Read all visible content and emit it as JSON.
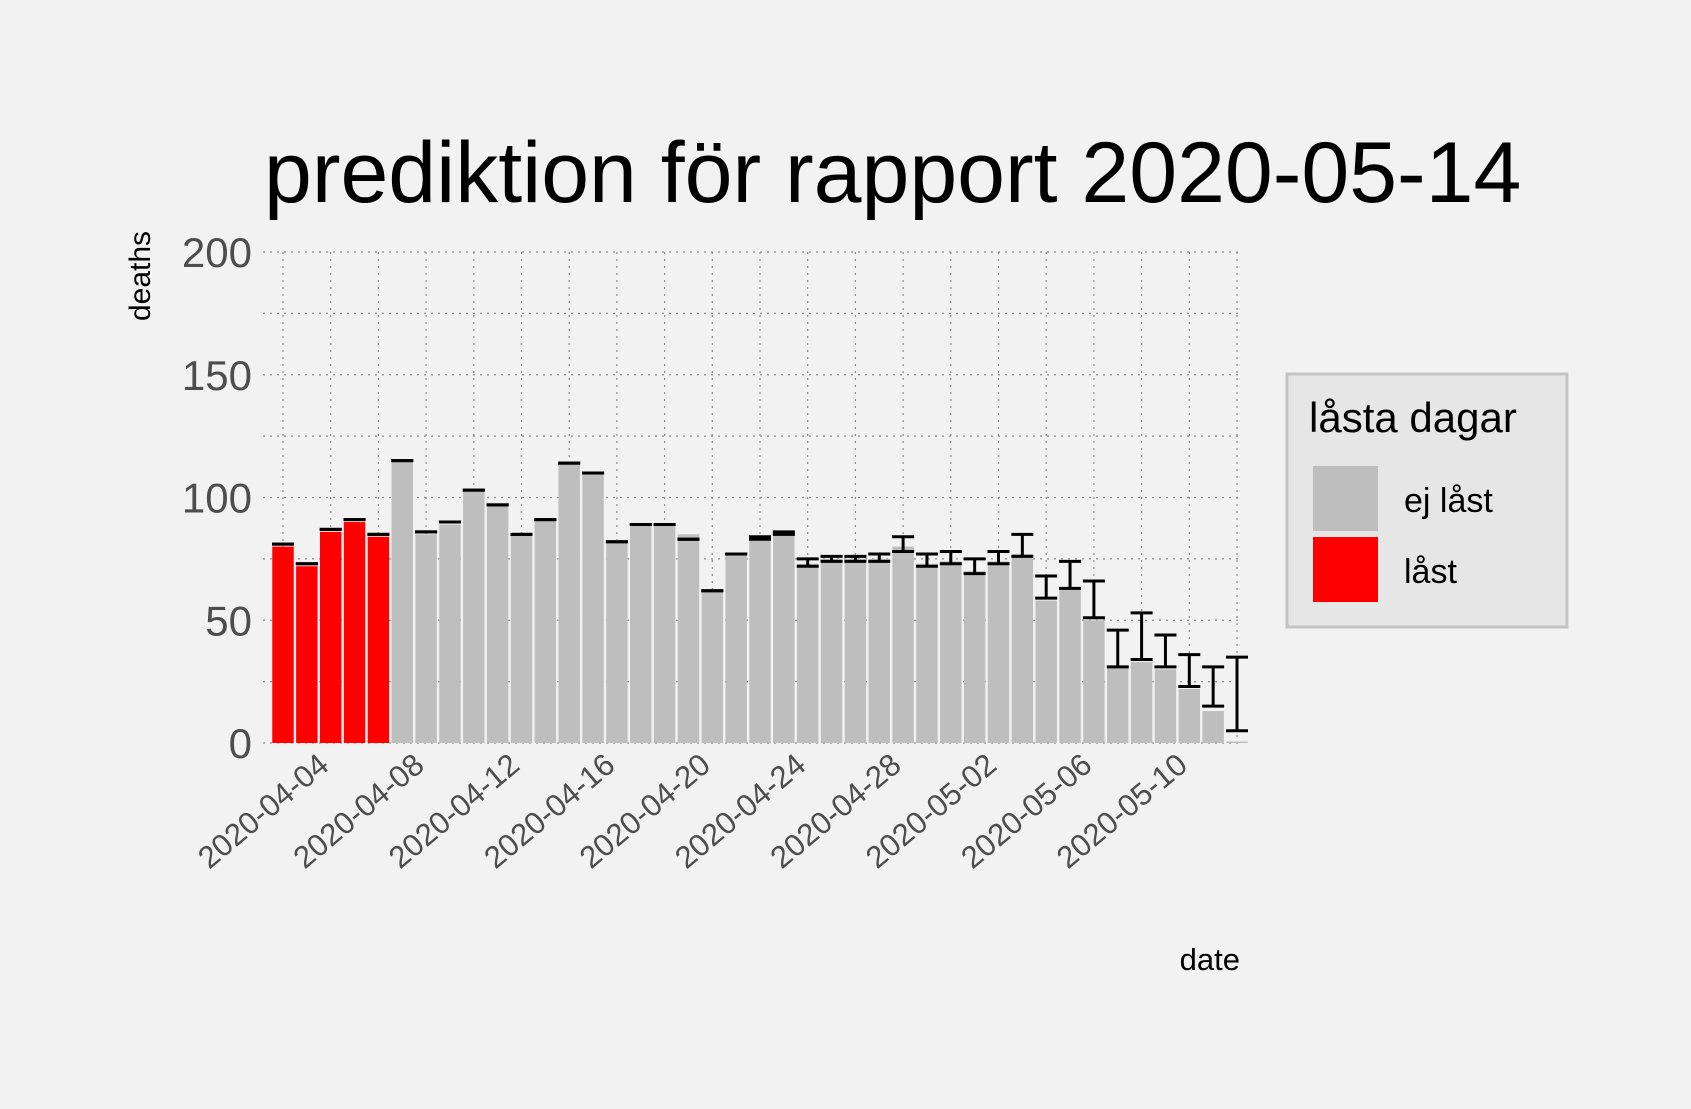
{
  "chart_data": {
    "type": "bar",
    "title": "prediktion för rapport 2020-05-14",
    "xlabel": "date",
    "ylabel": "deaths",
    "ylim": [
      0,
      200
    ],
    "yticks": [
      0,
      50,
      100,
      150,
      200
    ],
    "grid": true,
    "legend": {
      "title": "låsta dagar",
      "placement": "right",
      "entries": [
        {
          "label": "ej låst",
          "color": "#bebebe"
        },
        {
          "label": "låst",
          "color": "#ff0000"
        }
      ]
    },
    "colors": {
      "ej låst": "#bebebe",
      "låst": "#ff0000",
      "errorbar": "#000000"
    },
    "x_tick_labels": [
      "2020-04-04",
      "2020-04-08",
      "2020-04-12",
      "2020-04-16",
      "2020-04-20",
      "2020-04-24",
      "2020-04-28",
      "2020-05-02",
      "2020-05-06",
      "2020-05-10"
    ],
    "x_ticks_at": [
      "2020-04-04",
      "2020-04-08",
      "2020-04-12",
      "2020-04-16",
      "2020-04-20",
      "2020-04-24",
      "2020-04-28",
      "2020-05-02",
      "2020-05-06",
      "2020-05-10"
    ],
    "bars": [
      {
        "date": "2020-04-02",
        "value": 80,
        "low": 81,
        "high": 81,
        "group": "låst"
      },
      {
        "date": "2020-04-03",
        "value": 72,
        "low": 73,
        "high": 73,
        "group": "låst"
      },
      {
        "date": "2020-04-04",
        "value": 86,
        "low": 87,
        "high": 87,
        "group": "låst"
      },
      {
        "date": "2020-04-05",
        "value": 90,
        "low": 91,
        "high": 91,
        "group": "låst"
      },
      {
        "date": "2020-04-06",
        "value": 84,
        "low": 85,
        "high": 85,
        "group": "låst"
      },
      {
        "date": "2020-04-07",
        "value": 115,
        "low": 115,
        "high": 115,
        "group": "ej låst"
      },
      {
        "date": "2020-04-08",
        "value": 85,
        "low": 86,
        "high": 86,
        "group": "ej låst"
      },
      {
        "date": "2020-04-09",
        "value": 89,
        "low": 90,
        "high": 90,
        "group": "ej låst"
      },
      {
        "date": "2020-04-10",
        "value": 103,
        "low": 103,
        "high": 103,
        "group": "ej låst"
      },
      {
        "date": "2020-04-11",
        "value": 97,
        "low": 97,
        "high": 97,
        "group": "ej låst"
      },
      {
        "date": "2020-04-12",
        "value": 85,
        "low": 85,
        "high": 85,
        "group": "ej låst"
      },
      {
        "date": "2020-04-13",
        "value": 91,
        "low": 91,
        "high": 91,
        "group": "ej låst"
      },
      {
        "date": "2020-04-14",
        "value": 114,
        "low": 114,
        "high": 114,
        "group": "ej låst"
      },
      {
        "date": "2020-04-15",
        "value": 110,
        "low": 110,
        "high": 110,
        "group": "ej låst"
      },
      {
        "date": "2020-04-16",
        "value": 82,
        "low": 82,
        "high": 82,
        "group": "ej låst"
      },
      {
        "date": "2020-04-17",
        "value": 89,
        "low": 89,
        "high": 89,
        "group": "ej låst"
      },
      {
        "date": "2020-04-18",
        "value": 89,
        "low": 89,
        "high": 89,
        "group": "ej låst"
      },
      {
        "date": "2020-04-19",
        "value": 85,
        "low": 83,
        "high": 83,
        "group": "ej låst"
      },
      {
        "date": "2020-04-20",
        "value": 62,
        "low": 62,
        "high": 62,
        "group": "ej låst"
      },
      {
        "date": "2020-04-21",
        "value": 77,
        "low": 77,
        "high": 77,
        "group": "ej låst"
      },
      {
        "date": "2020-04-22",
        "value": 83,
        "low": 83,
        "high": 84,
        "group": "ej låst"
      },
      {
        "date": "2020-04-23",
        "value": 85,
        "low": 85,
        "high": 86,
        "group": "ej låst"
      },
      {
        "date": "2020-04-24",
        "value": 73,
        "low": 72,
        "high": 75,
        "group": "ej låst"
      },
      {
        "date": "2020-04-25",
        "value": 75,
        "low": 74,
        "high": 76,
        "group": "ej låst"
      },
      {
        "date": "2020-04-26",
        "value": 75,
        "low": 74,
        "high": 76,
        "group": "ej låst"
      },
      {
        "date": "2020-04-27",
        "value": 75,
        "low": 74,
        "high": 77,
        "group": "ej låst"
      },
      {
        "date": "2020-04-28",
        "value": 80,
        "low": 78,
        "high": 84,
        "group": "ej låst"
      },
      {
        "date": "2020-04-29",
        "value": 73,
        "low": 72,
        "high": 77,
        "group": "ej låst"
      },
      {
        "date": "2020-04-30",
        "value": 74,
        "low": 73,
        "high": 78,
        "group": "ej låst"
      },
      {
        "date": "2020-05-01",
        "value": 70,
        "low": 69,
        "high": 75,
        "group": "ej låst"
      },
      {
        "date": "2020-05-02",
        "value": 74,
        "low": 73,
        "high": 78,
        "group": "ej låst"
      },
      {
        "date": "2020-05-03",
        "value": 77,
        "low": 76,
        "high": 85,
        "group": "ej låst"
      },
      {
        "date": "2020-05-04",
        "value": 58,
        "low": 59,
        "high": 68,
        "group": "ej låst"
      },
      {
        "date": "2020-05-05",
        "value": 63,
        "low": 63,
        "high": 74,
        "group": "ej låst"
      },
      {
        "date": "2020-05-06",
        "value": 50,
        "low": 51,
        "high": 66,
        "group": "ej låst"
      },
      {
        "date": "2020-05-07",
        "value": 31,
        "low": 31,
        "high": 46,
        "group": "ej låst"
      },
      {
        "date": "2020-05-08",
        "value": 33,
        "low": 34,
        "high": 53,
        "group": "ej låst"
      },
      {
        "date": "2020-05-09",
        "value": 30,
        "low": 31,
        "high": 44,
        "group": "ej låst"
      },
      {
        "date": "2020-05-10",
        "value": 22,
        "low": 23,
        "high": 36,
        "group": "ej låst"
      },
      {
        "date": "2020-05-11",
        "value": 13,
        "low": 15,
        "high": 31,
        "group": "ej låst"
      },
      {
        "date": "2020-05-12",
        "value": 0,
        "low": 5,
        "high": 35,
        "group": "ej låst"
      }
    ]
  }
}
